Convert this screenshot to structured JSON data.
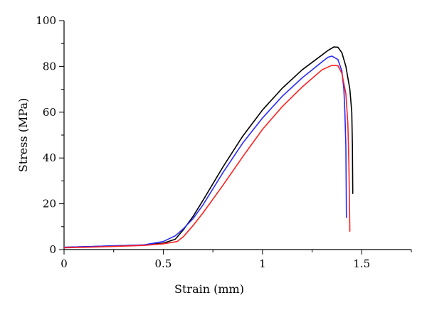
{
  "chart_data": {
    "type": "line",
    "title": "",
    "xlabel": "Strain (mm)",
    "ylabel": "Stress (MPa)",
    "xlim": [
      0,
      1.75
    ],
    "ylim": [
      0,
      100
    ],
    "x_ticks": [
      0,
      0.5,
      1,
      1.5
    ],
    "x_tick_labels": [
      "0",
      "0.5",
      "1",
      "1.5"
    ],
    "x_minor_ticks": [
      0.25,
      0.75,
      1.25,
      1.75
    ],
    "y_ticks": [
      0,
      20,
      40,
      60,
      80,
      100
    ],
    "y_tick_labels": [
      "0",
      "20",
      "40",
      "60",
      "80",
      "100"
    ],
    "y_minor_ticks": [
      10,
      30,
      50,
      70,
      90
    ],
    "grid": false,
    "legend": "none",
    "series": [
      {
        "color": "#000000",
        "points": [
          [
            0,
            1.0
          ],
          [
            0.2,
            1.5
          ],
          [
            0.4,
            2.0
          ],
          [
            0.5,
            2.8
          ],
          [
            0.56,
            4.5
          ],
          [
            0.6,
            8.5
          ],
          [
            0.65,
            14.5
          ],
          [
            0.7,
            21.5
          ],
          [
            0.8,
            36.0
          ],
          [
            0.9,
            49.5
          ],
          [
            1.0,
            61.0
          ],
          [
            1.1,
            70.5
          ],
          [
            1.2,
            78.5
          ],
          [
            1.3,
            85.0
          ],
          [
            1.33,
            87.0
          ],
          [
            1.36,
            88.5
          ],
          [
            1.38,
            88.4
          ],
          [
            1.4,
            86.0
          ],
          [
            1.42,
            80.0
          ],
          [
            1.44,
            70.0
          ],
          [
            1.45,
            60.0
          ],
          [
            1.453,
            45.0
          ],
          [
            1.455,
            24.5
          ]
        ]
      },
      {
        "color": "#2a2aff",
        "points": [
          [
            0,
            1.0
          ],
          [
            0.2,
            1.5
          ],
          [
            0.4,
            2.0
          ],
          [
            0.5,
            3.5
          ],
          [
            0.56,
            6.0
          ],
          [
            0.6,
            9.0
          ],
          [
            0.65,
            13.5
          ],
          [
            0.7,
            19.5
          ],
          [
            0.8,
            33.5
          ],
          [
            0.9,
            46.5
          ],
          [
            1.0,
            57.5
          ],
          [
            1.1,
            67.0
          ],
          [
            1.2,
            75.0
          ],
          [
            1.3,
            82.0
          ],
          [
            1.33,
            84.0
          ],
          [
            1.35,
            84.5
          ],
          [
            1.38,
            83.0
          ],
          [
            1.4,
            78.0
          ],
          [
            1.41,
            70.0
          ],
          [
            1.415,
            60.0
          ],
          [
            1.42,
            45.0
          ],
          [
            1.423,
            14.0
          ]
        ]
      },
      {
        "color": "#ff2020",
        "points": [
          [
            0,
            0.8
          ],
          [
            0.2,
            1.2
          ],
          [
            0.4,
            1.8
          ],
          [
            0.5,
            2.5
          ],
          [
            0.57,
            3.5
          ],
          [
            0.6,
            5.5
          ],
          [
            0.65,
            10.5
          ],
          [
            0.7,
            16.0
          ],
          [
            0.8,
            28.0
          ],
          [
            0.9,
            40.5
          ],
          [
            1.0,
            52.5
          ],
          [
            1.1,
            62.5
          ],
          [
            1.2,
            71.0
          ],
          [
            1.3,
            78.5
          ],
          [
            1.35,
            80.5
          ],
          [
            1.38,
            80.3
          ],
          [
            1.4,
            77.0
          ],
          [
            1.42,
            68.0
          ],
          [
            1.43,
            55.0
          ],
          [
            1.435,
            38.0
          ],
          [
            1.44,
            8.0
          ]
        ]
      }
    ]
  }
}
